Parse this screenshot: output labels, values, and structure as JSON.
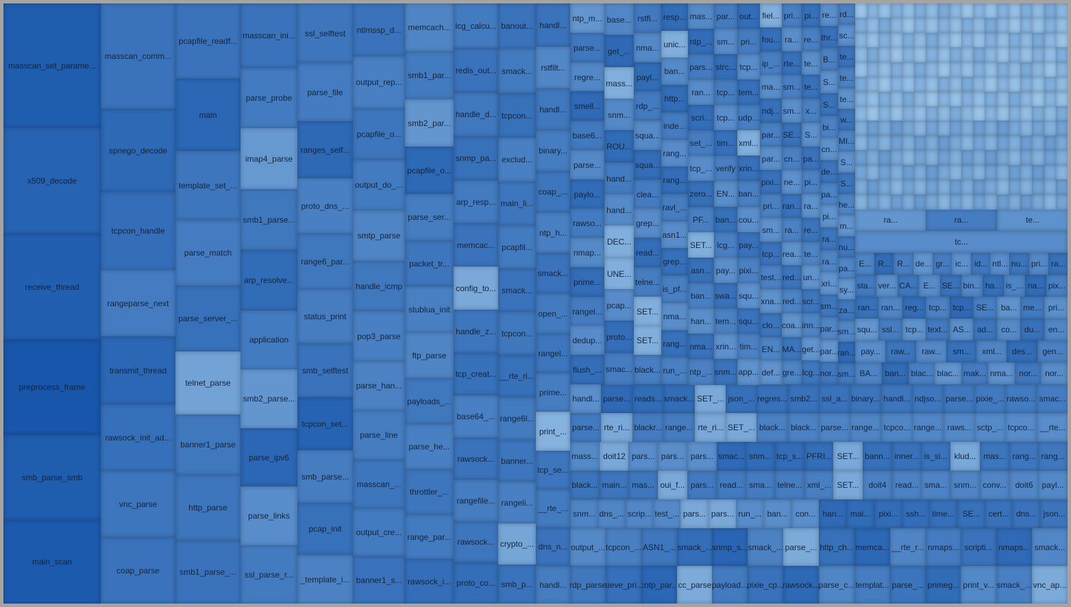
{
  "chart_data": {
    "type": "treemap",
    "columns": [
      {
        "w": 1.0,
        "cells": [
          [
            "masscan_set_parame...",
            0.21,
            0.9
          ],
          [
            "x509_decode",
            0.18,
            0.85
          ],
          [
            "receive_thread",
            0.18,
            0.88
          ],
          [
            "preprocess_frame",
            0.16,
            0.95
          ],
          [
            "smb_parse_smb",
            0.145,
            0.9
          ],
          [
            "main_scan",
            0.14,
            0.92
          ]
        ]
      },
      {
        "w": 0.77,
        "cells": [
          [
            "masscan_comm...",
            0.175,
            0.72
          ],
          [
            "spnego_decode",
            0.138,
            0.8
          ],
          [
            "tcpcon_handle",
            0.13,
            0.76
          ],
          [
            "rangeparse_next",
            0.11,
            0.65
          ],
          [
            "transmit_thread",
            0.113,
            0.82
          ],
          [
            "rawsock_init_ad...",
            0.11,
            0.75
          ],
          [
            "vnc_parse",
            0.11,
            0.7
          ],
          [
            "coap_parse",
            0.109,
            0.72
          ]
        ]
      },
      {
        "w": 0.69,
        "cells": [
          [
            "pcapfile_readf...",
            0.125,
            0.72
          ],
          [
            "main",
            0.12,
            0.82
          ],
          [
            "template_set_...",
            0.115,
            0.7
          ],
          [
            "parse_match",
            0.11,
            0.65
          ],
          [
            "parse_server_...",
            0.11,
            0.74
          ],
          [
            "telnet_parse",
            0.105,
            0.35
          ],
          [
            "banner1_parse",
            0.1,
            0.68
          ],
          [
            "http_parse",
            0.11,
            0.7
          ],
          [
            "smb1_parse_...",
            0.105,
            0.72
          ]
        ]
      },
      {
        "w": 0.61,
        "cells": [
          [
            "masscan_ini...",
            0.107,
            0.72
          ],
          [
            "parse_probe",
            0.1,
            0.66
          ],
          [
            "imap4_parse",
            0.102,
            0.42
          ],
          [
            "smb1_parse...",
            0.102,
            0.68
          ],
          [
            "arp_resolve...",
            0.1,
            0.78
          ],
          [
            "application",
            0.098,
            0.66
          ],
          [
            "smb2_parse...",
            0.098,
            0.45
          ],
          [
            "parse_ipv6",
            0.097,
            0.82
          ],
          [
            "parse_links",
            0.098,
            0.52
          ],
          [
            "ssl_parse_r...",
            0.098,
            0.66
          ]
        ]
      },
      {
        "w": 0.58,
        "cells": [
          [
            "ssl_selftest",
            0.099,
            0.7
          ],
          [
            "parse_file",
            0.097,
            0.65
          ],
          [
            "ranges_self...",
            0.095,
            0.8
          ],
          [
            "proto_dns_...",
            0.092,
            0.62
          ],
          [
            "range6_par...",
            0.092,
            0.68
          ],
          [
            "status_print",
            0.09,
            0.64
          ],
          [
            "smb_selftest",
            0.09,
            0.72
          ],
          [
            "tcpcon_set...",
            0.088,
            0.85
          ],
          [
            "smb_parse...",
            0.088,
            0.64
          ],
          [
            "pcap_init",
            0.087,
            0.74
          ],
          [
            "_template_i...",
            0.082,
            0.6
          ]
        ]
      },
      {
        "w": 0.56,
        "cells": [
          [
            "ntlmssp_d...",
            0.088,
            0.72
          ],
          [
            "output_rep...",
            0.087,
            0.62
          ],
          [
            "pcapfile_o...",
            0.086,
            0.7
          ],
          [
            "output_do_...",
            0.085,
            0.66
          ],
          [
            "smtp_parse",
            0.084,
            0.58
          ],
          [
            "handle_icmp",
            0.083,
            0.68
          ],
          [
            "pop3_parse",
            0.083,
            0.62
          ],
          [
            "parse_han...",
            0.082,
            0.6
          ],
          [
            "parse_line",
            0.082,
            0.64
          ],
          [
            "masscan_...",
            0.081,
            0.7
          ],
          [
            "output_cre...",
            0.08,
            0.66
          ],
          [
            "banner1_s...",
            0.079,
            0.72
          ]
        ]
      },
      {
        "w": 0.53,
        "cells": [
          [
            "memcach...",
            0.08,
            0.58
          ],
          [
            "smb1_par...",
            0.08,
            0.66
          ],
          [
            "smb2_par...",
            0.079,
            0.45
          ],
          [
            "pcapfile_o...",
            0.079,
            0.8
          ],
          [
            "parse_ser...",
            0.078,
            0.64
          ],
          [
            "packet_tr...",
            0.077,
            0.7
          ],
          [
            "stublua_init",
            0.077,
            0.62
          ],
          [
            "ftp_parse",
            0.076,
            0.58
          ],
          [
            "payloads_...",
            0.076,
            0.68
          ],
          [
            "parse_he...",
            0.075,
            0.62
          ],
          [
            "throttler_...",
            0.075,
            0.7
          ],
          [
            "range_par...",
            0.074,
            0.66
          ],
          [
            "rawsock_i...",
            0.074,
            0.76
          ]
        ]
      },
      {
        "w": 0.49,
        "cells": [
          [
            "lcg_calcu...",
            0.074,
            0.66
          ],
          [
            "redis_out...",
            0.074,
            0.72
          ],
          [
            "handle_d...",
            0.073,
            0.68
          ],
          [
            "snmp_pa...",
            0.073,
            0.74
          ],
          [
            "arp_resp...",
            0.072,
            0.66
          ],
          [
            "memcac...",
            0.072,
            0.72
          ],
          [
            "config_to...",
            0.071,
            0.3
          ],
          [
            "handle_z...",
            0.071,
            0.7
          ],
          [
            "tcp_creat...",
            0.07,
            0.74
          ],
          [
            "base64_...",
            0.07,
            0.62
          ],
          [
            "rawsock...",
            0.069,
            0.72
          ],
          [
            "rangefile...",
            0.069,
            0.64
          ],
          [
            "rawsock...",
            0.068,
            0.7
          ],
          [
            "proto_co...",
            0.068,
            0.76
          ]
        ]
      },
      {
        "w": 0.43,
        "cells": [
          [
            "banout...",
            0.069,
            0.72
          ],
          [
            "smack...",
            0.068,
            0.66
          ],
          [
            "tcpcon...",
            0.068,
            0.74
          ],
          [
            "exclud...",
            0.067,
            0.62
          ],
          [
            "main_li...",
            0.067,
            0.7
          ],
          [
            "pcapfil...",
            0.066,
            0.66
          ],
          [
            "smack...",
            0.066,
            0.72
          ],
          [
            "tcpcon...",
            0.066,
            0.68
          ],
          [
            "__rte_ri...",
            0.065,
            0.74
          ],
          [
            "range6l...",
            0.065,
            0.66
          ],
          [
            "banner...",
            0.064,
            0.7
          ],
          [
            "rangeli...",
            0.064,
            0.62
          ],
          [
            "crypto_...",
            0.063,
            0.32
          ],
          [
            "smb_p...",
            0.063,
            0.72
          ]
        ]
      },
      {
        "w": 0.38,
        "cells": [
          [
            "handl...",
            0.06,
            0.72
          ],
          [
            "rstfilt...",
            0.058,
            0.56
          ],
          [
            "handl...",
            0.058,
            0.68
          ],
          [
            "binary...",
            0.057,
            0.64
          ],
          [
            "coap_...",
            0.057,
            0.7
          ],
          [
            "ntp_h...",
            0.056,
            0.62
          ],
          [
            "smack...",
            0.056,
            0.72
          ],
          [
            "open_...",
            0.056,
            0.66
          ],
          [
            "rangel...",
            0.055,
            0.7
          ],
          [
            "prime...",
            0.055,
            0.64
          ],
          [
            "print_...",
            0.055,
            0.22
          ],
          [
            "tcp_se...",
            0.054,
            0.7
          ],
          [
            "__rte_...",
            0.054,
            0.66
          ],
          [
            "dns_n...",
            0.054,
            0.72
          ],
          [
            "handl...",
            0.053,
            0.64
          ]
        ]
      }
    ],
    "bottom_rows": [
      [
        "output_...",
        "tcpcon_...",
        "ASN1_...",
        "smack_...",
        "snmp_s...",
        "smack_...",
        "parse_...",
        "http_ch...",
        "memca...",
        "__rte_r...",
        "nmaps...",
        "scripti...",
        "nmaps...",
        "smack..."
      ],
      [
        "rdp_parse",
        "sieve_pri...",
        "cotp_par...",
        "cc_parse",
        "payload...",
        "pixie_cp...",
        "rawsock...",
        "parse_c...",
        "templat...",
        "parse_...",
        "primeg...",
        "print_v...",
        "smack_...",
        "vnc_ap..."
      ]
    ],
    "mid_rows": [
      [
        "handl...",
        "parse...",
        "reads...",
        "smack...",
        "SET_...",
        "json_...",
        "regres...",
        "smb2...",
        "ssl_a...",
        "binary...",
        "handl...",
        "ndjso...",
        "parse...",
        "pixie_...",
        "rawso...",
        "smac..."
      ],
      [
        "parse...",
        "rte_ri...",
        "blackr...",
        "range...",
        "rte_ri...",
        "SET_...",
        "black...",
        "black...",
        "parse...",
        "range...",
        "tcpco...",
        "range...",
        "raws...",
        "sctp_...",
        "tcpco...",
        "__rte..."
      ],
      [
        "mass...",
        "doit12",
        "pars...",
        "pars...",
        "pars...",
        "smac...",
        "snm...",
        "tcp_s...",
        "PFRI...",
        "SET...",
        "bann...",
        "inner...",
        "is_si...",
        "klud...",
        "mas...",
        "rang...",
        "rang..."
      ],
      [
        "black...",
        "main...",
        "mas...",
        "oui_f...",
        "pars...",
        "read...",
        "sma...",
        "telne...",
        "xml_...",
        "SET...",
        "doit4",
        "read...",
        "sma...",
        "snm...",
        "conv...",
        "doit6",
        "payl..."
      ],
      [
        "snm...",
        "dns_...",
        "scrip...",
        "test_...",
        "pars...",
        "pars...",
        "run_...",
        "ban...",
        "con...",
        "han...",
        "mai...",
        "pixi...",
        "ssh...",
        "time...",
        "SE...",
        "cert...",
        "dns...",
        "json..."
      ]
    ],
    "grid_columns": [
      [
        "ntp_m...",
        "parse...",
        "regre...",
        "smell...",
        "base6...",
        "parse...",
        "paylo...",
        "rawso...",
        "nmap...",
        "prime...",
        "rangel...",
        "dedup...",
        "flush_..."
      ],
      [
        "base...",
        "get_...",
        "mass...",
        "snm...",
        "ROU...",
        "hand...",
        "hand...",
        "DEC...",
        "UNE...",
        "pcap...",
        "proto...",
        "smac..."
      ],
      [
        "rstfi...",
        "nma...",
        "payl...",
        "rdp_...",
        "squa...",
        "squa...",
        "clea...",
        "grep...",
        "read...",
        "telne...",
        "SET...",
        "SET...",
        "black..."
      ],
      [
        "resp...",
        "unic...",
        "ban...",
        "http...",
        "inde...",
        "rang...",
        "rang...",
        "ravl_...",
        "asn1...",
        "grep...",
        "is_pf...",
        "nma...",
        "rang...",
        "run_..."
      ],
      [
        "mas...",
        "ntp_...",
        "pars...",
        "ran...",
        "scri...",
        "set_...",
        "tcp_...",
        "zero...",
        "PF...",
        "SET...",
        "asn...",
        "ban...",
        "han...",
        "nma...",
        "ntp_..."
      ],
      [
        "par...",
        "sm...",
        "strc...",
        "tcp...",
        "tcp...",
        "tim...",
        "verify",
        "EN...",
        "ban...",
        "lcg...",
        "pay...",
        "swa...",
        "tem...",
        "xrin...",
        "snm..."
      ],
      [
        "out...",
        "pri...",
        "tcp...",
        "tem...",
        "udp...",
        "xml...",
        "xrin...",
        "ban...",
        "cou...",
        "pay...",
        "pixi...",
        "squ...",
        "squ...",
        "tim...",
        "app..."
      ],
      [
        "fiel...",
        "fou...",
        "ip_...",
        "ma...",
        "ndj...",
        "par...",
        "par...",
        "pixi...",
        "pri...",
        "sm...",
        "tcp...",
        "test...",
        "xna...",
        "clo...",
        "EN...",
        "def..."
      ],
      [
        "pri...",
        "ra...",
        "rte...",
        "sm...",
        "sm...",
        "SE...",
        "cn...",
        "ne...",
        "ran...",
        "ra...",
        "rea...",
        "red...",
        "red...",
        "coa...",
        "MA...",
        "gre..."
      ],
      [
        "pi...",
        "re...",
        "te...",
        "te...",
        "x...",
        "S...",
        "pa...",
        "pi...",
        "ra...",
        "re...",
        "te...",
        "un...",
        "scr...",
        "inn...",
        "get...",
        "lcg..."
      ],
      [
        "re...",
        "thr...",
        "B...",
        "S...",
        "S...",
        "bi...",
        "cn...",
        "de...",
        "pa...",
        "pi...",
        "ra...",
        "ra...",
        "xri...",
        "sm...",
        "par...",
        "par...",
        "nor..."
      ],
      [
        "rd...",
        "sc...",
        "te...",
        "te...",
        "te...",
        "w...",
        "MI...",
        "S...",
        "S...",
        "he...",
        "m...",
        "nu...",
        "pa...",
        "sy...",
        "za...",
        "sm...",
        "ran...",
        "sm..."
      ]
    ],
    "small_rows": [
      [
        "ra...",
        "ra...",
        "te..."
      ],
      [
        "tc..."
      ],
      [
        "E...",
        "R...",
        "R...",
        "de...",
        "gr...",
        "ic...",
        "id...",
        "ntl...",
        "nu...",
        "pri...",
        "ra..."
      ],
      [
        "sta...",
        "ver...",
        "CA...",
        "E...",
        "SE...",
        "bin...",
        "ha...",
        "is_...",
        "na...",
        "pix..."
      ],
      [
        "ran...",
        "ran...",
        "reg...",
        "tcp...",
        "tcp...",
        "SE...",
        "ba...",
        "me...",
        "pri..."
      ],
      [
        "squ...",
        "ssl...",
        "tcp...",
        "text...",
        "AS...",
        "ad...",
        "co...",
        "du...",
        "en..."
      ],
      [
        "pay...",
        "raw...",
        "raw...",
        "sm...",
        "xml...",
        "des...",
        "gen..."
      ],
      [
        "BA...",
        "ban...",
        "blac...",
        "blac...",
        "mak...",
        "nma...",
        "nor...",
        "nor..."
      ]
    ]
  }
}
